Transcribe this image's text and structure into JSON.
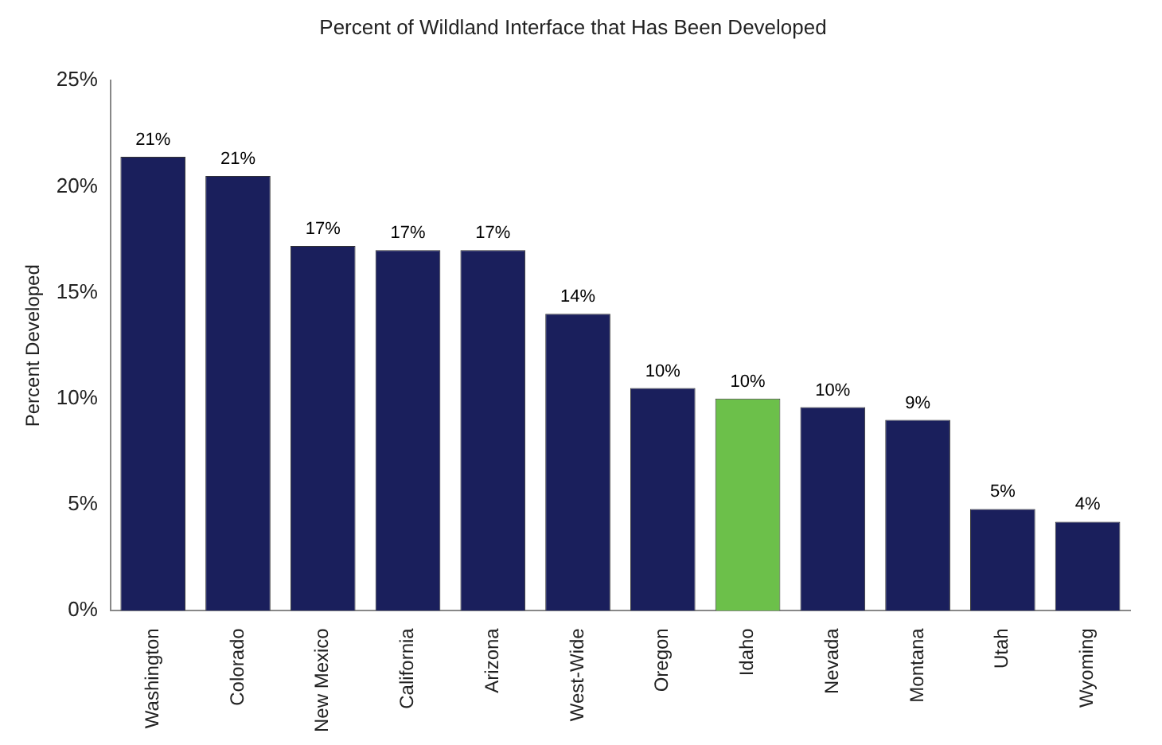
{
  "chart_data": {
    "type": "bar",
    "title": "Percent of Wildland Interface that Has Been Developed",
    "ylabel": "Percent Developed",
    "categories": [
      "Washington",
      "Colorado",
      "New Mexico",
      "California",
      "Arizona",
      "West-Wide",
      "Oregon",
      "Idaho",
      "Nevada",
      "Montana",
      "Utah",
      "Wyoming"
    ],
    "values": [
      21.4,
      20.5,
      17.2,
      17.0,
      17.0,
      14.0,
      10.5,
      10.0,
      9.6,
      9.0,
      4.8,
      4.2
    ],
    "value_labels": [
      "21%",
      "21%",
      "17%",
      "17%",
      "17%",
      "14%",
      "10%",
      "10%",
      "10%",
      "9%",
      "5%",
      "4%"
    ],
    "colors": [
      "#1a1f5c",
      "#1a1f5c",
      "#1a1f5c",
      "#1a1f5c",
      "#1a1f5c",
      "#1a1f5c",
      "#1a1f5c",
      "#6cc04a",
      "#1a1f5c",
      "#1a1f5c",
      "#1a1f5c",
      "#1a1f5c"
    ],
    "ylim": [
      0,
      25
    ],
    "yticks": [
      {
        "value": 0,
        "label": "0%"
      },
      {
        "value": 5,
        "label": "5%"
      },
      {
        "value": 10,
        "label": "10%"
      },
      {
        "value": 15,
        "label": "15%"
      },
      {
        "value": 20,
        "label": "20%"
      },
      {
        "value": 25,
        "label": "25%"
      }
    ],
    "grid": false,
    "legend": false
  }
}
